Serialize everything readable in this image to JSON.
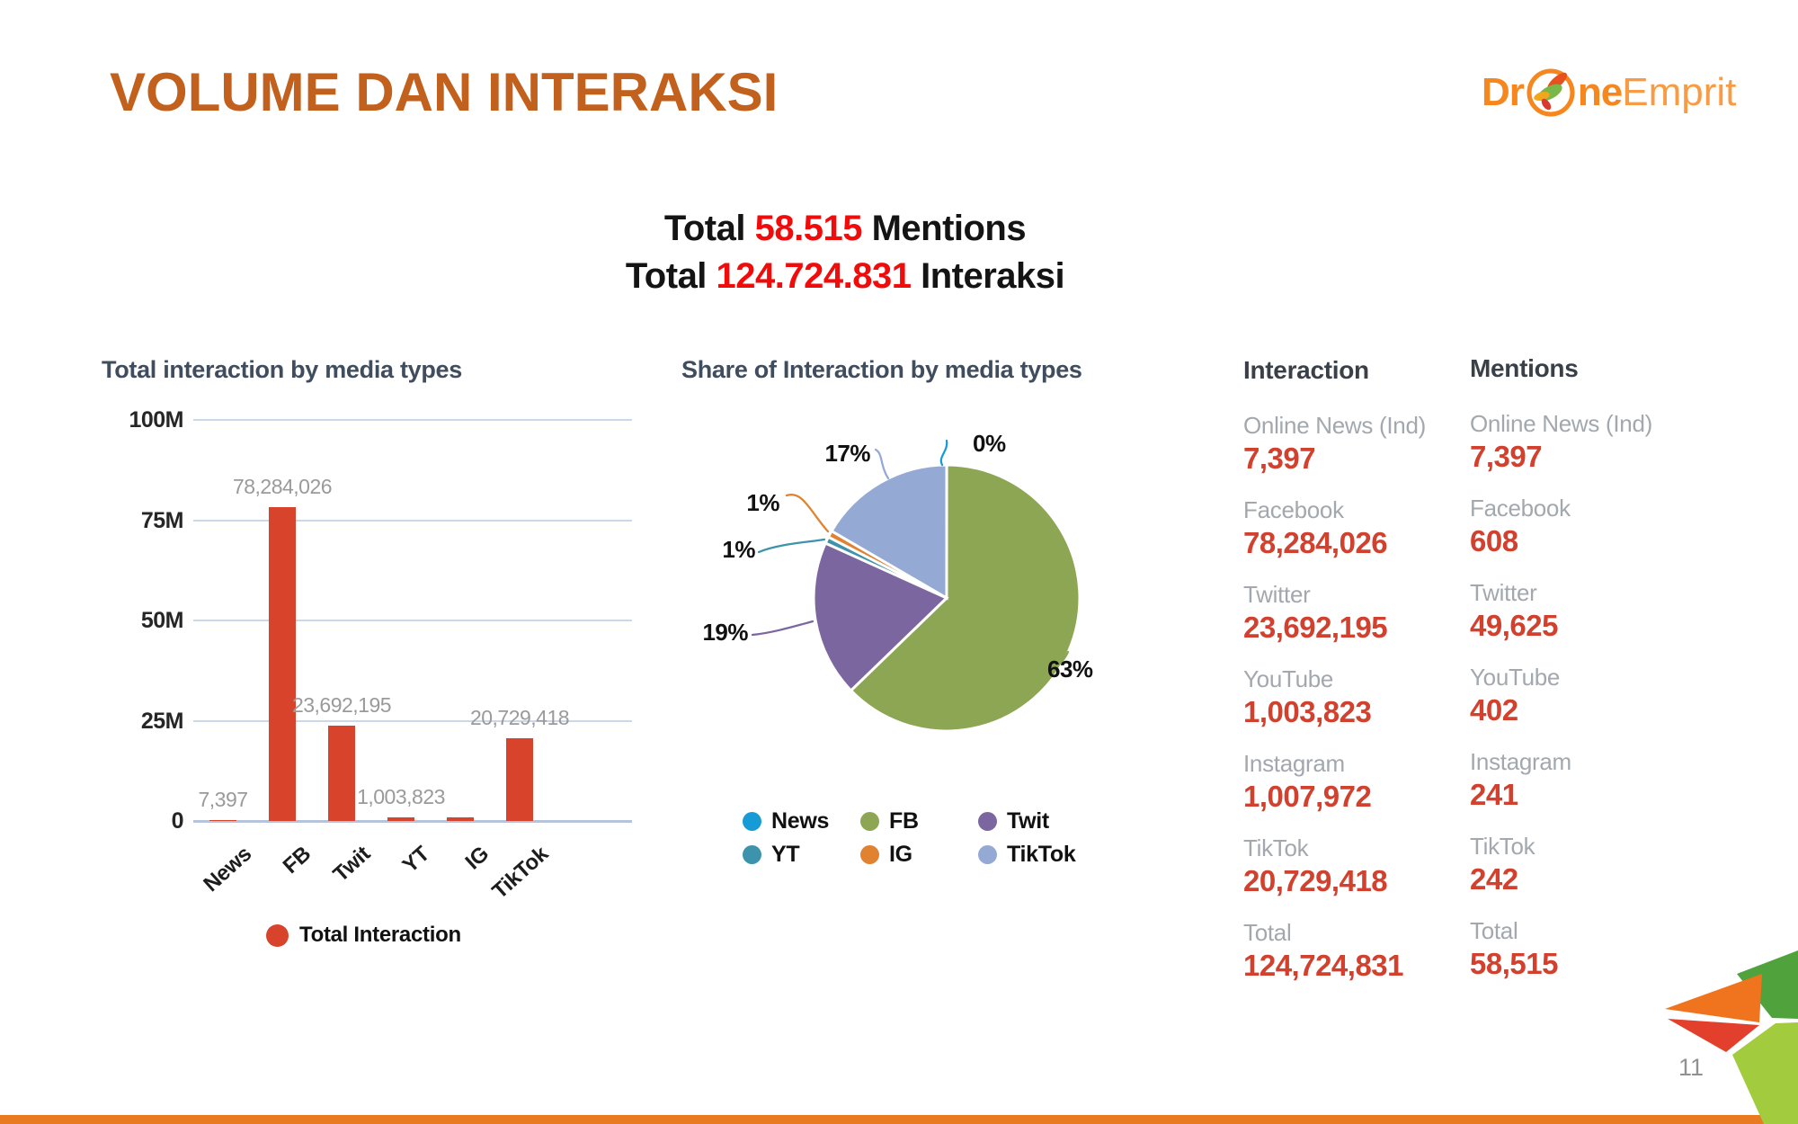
{
  "slide": {
    "title": "VOLUME DAN INTERAKSI",
    "page_number": "11"
  },
  "logo": {
    "part1": "Dr",
    "part2": "ne",
    "part3": "Emprit"
  },
  "totals": {
    "line1": {
      "prefix": "Total",
      "value": "58.515",
      "suffix": "Mentions"
    },
    "line2": {
      "prefix": "Total",
      "value": "124.724.831",
      "suffix": "Interaksi"
    }
  },
  "chart_data": [
    {
      "type": "bar",
      "title": "Total interaction by media types",
      "categories": [
        "News",
        "FB",
        "Twit",
        "YT",
        "IG",
        "TikTok"
      ],
      "values": [
        7397,
        78284026,
        23692195,
        1003823,
        1007972,
        20729418
      ],
      "value_labels": [
        "7,397",
        "78,284,026",
        "23,692,195",
        "1,003,823",
        "",
        "20,729,418"
      ],
      "ylabel_ticks": [
        "100M",
        "75M",
        "50M",
        "25M",
        "0"
      ],
      "ylim": [
        0,
        100000000
      ],
      "grid": true,
      "bar_color": "#d8432c",
      "legend": [
        {
          "label": "Total Interaction",
          "color": "#d8432c"
        }
      ],
      "legend_position": "bottom"
    },
    {
      "type": "pie",
      "title": "Share of Interaction by media types",
      "slices": [
        {
          "name": "News",
          "value": 7397,
          "percent_label": "0%",
          "color": "#179bd7"
        },
        {
          "name": "FB",
          "value": 78284026,
          "percent_label": "63%",
          "color": "#8ca653"
        },
        {
          "name": "Twit",
          "value": 23692195,
          "percent_label": "19%",
          "color": "#7c66a0"
        },
        {
          "name": "YT",
          "value": 1003823,
          "percent_label": "1%",
          "color": "#3d93ac"
        },
        {
          "name": "IG",
          "value": 1007972,
          "percent_label": "1%",
          "color": "#e0822f"
        },
        {
          "name": "TikTok",
          "value": 20729418,
          "percent_label": "17%",
          "color": "#94a9d4"
        }
      ],
      "legend_position": "bottom"
    }
  ],
  "stats": {
    "interaction": {
      "header": "Interaction",
      "rows": [
        {
          "label": "Online News (Ind)",
          "value": "7,397"
        },
        {
          "label": "Facebook",
          "value": "78,284,026"
        },
        {
          "label": "Twitter",
          "value": "23,692,195"
        },
        {
          "label": "YouTube",
          "value": "1,003,823"
        },
        {
          "label": "Instagram",
          "value": "1,007,972"
        },
        {
          "label": "TikTok",
          "value": "20,729,418"
        },
        {
          "label": "Total",
          "value": "124,724,831"
        }
      ]
    },
    "mentions": {
      "header": "Mentions",
      "rows": [
        {
          "label": "Online News (Ind)",
          "value": "7,397"
        },
        {
          "label": "Facebook",
          "value": "608"
        },
        {
          "label": "Twitter",
          "value": "49,625"
        },
        {
          "label": "YouTube",
          "value": "402"
        },
        {
          "label": "Instagram",
          "value": "241"
        },
        {
          "label": "TikTok",
          "value": "242"
        },
        {
          "label": "Total",
          "value": "58,515"
        }
      ]
    }
  }
}
